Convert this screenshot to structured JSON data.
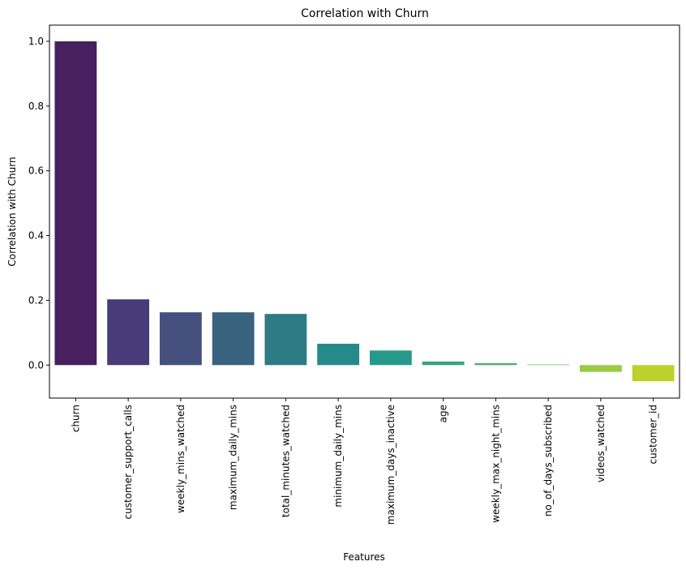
{
  "chart_data": {
    "type": "bar",
    "title": "Correlation with Churn",
    "xlabel": "Features",
    "ylabel": "Correlation with Churn",
    "categories": [
      "churn",
      "customer_support_calls",
      "weekly_mins_watched",
      "maximum_daily_mins",
      "total_minutes_watched",
      "minimum_daily_mins",
      "maximum_days_inactive",
      "age",
      "weekly_max_night_mins",
      "no_of_days_subscribed",
      "videos_watched",
      "customer_id"
    ],
    "values": [
      1.0,
      0.203,
      0.163,
      0.163,
      0.158,
      0.066,
      0.045,
      0.011,
      0.006,
      0.002,
      -0.021,
      -0.05
    ],
    "colors": [
      "#46205f",
      "#473b7a",
      "#45507f",
      "#39627f",
      "#2e7a85",
      "#26898a",
      "#26998a",
      "#31a77b",
      "#44b074",
      "#76c15d",
      "#9acb45",
      "#bdd12c"
    ],
    "yticks": [
      0.0,
      0.2,
      0.4,
      0.6,
      0.8,
      1.0
    ],
    "ytick_labels": [
      "0.0",
      "0.2",
      "0.4",
      "0.6",
      "0.8",
      "1.0"
    ],
    "ylim": [
      -0.102,
      1.05
    ],
    "grid": false,
    "legend": "none"
  }
}
